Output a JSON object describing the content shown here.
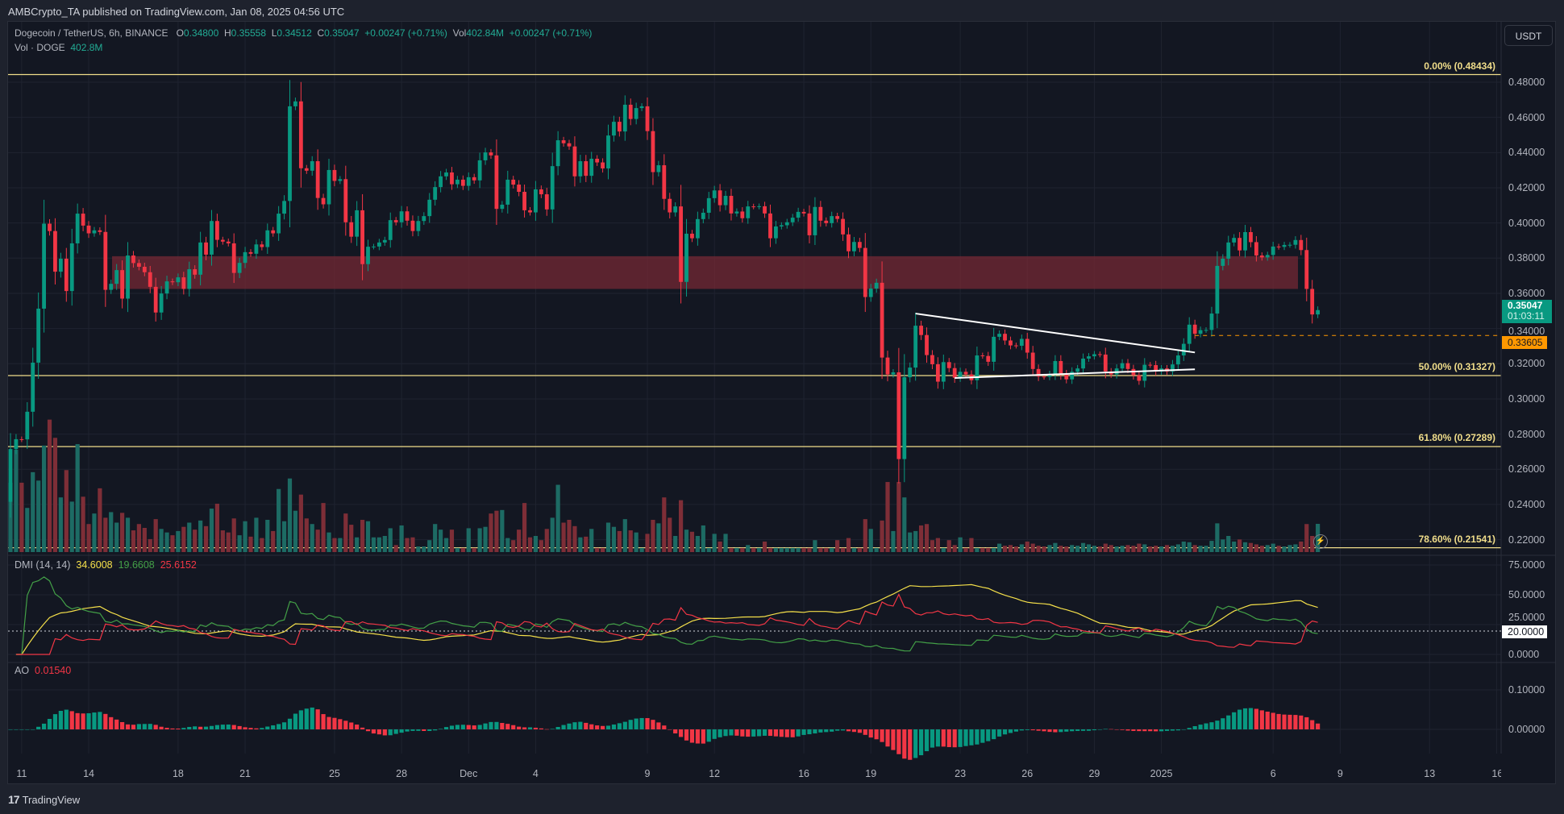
{
  "header": {
    "published": "AMBCrypto_TA published on TradingView.com, Jan 08, 2025 04:56 UTC"
  },
  "legend": {
    "symbol": "Dogecoin / TetherUS, 6h, BINANCE",
    "o_label": "O",
    "o": "0.34800",
    "h_label": "H",
    "h": "0.35558",
    "l_label": "L",
    "l": "0.34512",
    "c_label": "C",
    "c": "0.35047",
    "change": "+0.00247 (+0.71%)",
    "vol_label": "Vol",
    "vol": "402.84M",
    "vol_change": "+0.00247 (+0.71%)",
    "vol_series_label": "Vol · DOGE",
    "vol_series_value": "402.8M"
  },
  "currency_button": "USDT",
  "last_price": {
    "value": "0.35047",
    "countdown": "01:03:11"
  },
  "level_price": {
    "value": "0.33605",
    "price": 0.33605,
    "color": "#ff9800"
  },
  "colors": {
    "up": "#089981",
    "down": "#f23645",
    "fib": "#f0dd8a",
    "zone": "#7a2a35",
    "adx": "#f5e04a",
    "plus_di": "#43a047",
    "minus_di": "#f23645"
  },
  "price_axis": {
    "ticks": [
      "0.48000",
      "0.46000",
      "0.44000",
      "0.42000",
      "0.40000",
      "0.38000",
      "0.36000",
      "0.34000",
      "0.32000",
      "0.30000",
      "0.28000",
      "0.26000",
      "0.24000",
      "0.22000"
    ]
  },
  "fib_levels": [
    {
      "label": "0.00% (0.48434)",
      "price": 0.48434
    },
    {
      "label": "50.00% (0.31327)",
      "price": 0.31327
    },
    {
      "label": "61.80% (0.27289)",
      "price": 0.27289
    },
    {
      "label": "78.60% (0.21541)",
      "price": 0.21541
    }
  ],
  "resistance_zone": {
    "from": 0.3625,
    "to": 0.3811
  },
  "triangle": {
    "upper": [
      {
        "candle": 162,
        "price": 0.3485
      },
      {
        "candle": 212,
        "price": 0.3264
      }
    ],
    "lower": [
      {
        "candle": 169,
        "price": 0.3119
      },
      {
        "candle": 212,
        "price": 0.3168
      }
    ]
  },
  "dmi": {
    "label": "DMI (14, 14)",
    "adx": "34.6008",
    "plus_di": "19.6608",
    "minus_di": "25.6152",
    "ticks": [
      "75.0000",
      "50.0000",
      "25.0000",
      "0.0000"
    ],
    "level": "20.0000"
  },
  "ao": {
    "label": "AO",
    "value": "0.01540",
    "ticks": [
      "0.10000",
      "0.00000"
    ]
  },
  "time_axis": [
    {
      "label": "11",
      "date": "2024-11-11"
    },
    {
      "label": "14",
      "date": "2024-11-14"
    },
    {
      "label": "18",
      "date": "2024-11-18"
    },
    {
      "label": "21",
      "date": "2024-11-21"
    },
    {
      "label": "25",
      "date": "2024-11-25"
    },
    {
      "label": "28",
      "date": "2024-11-28"
    },
    {
      "label": "Dec",
      "date": "2024-12-01"
    },
    {
      "label": "4",
      "date": "2024-12-04"
    },
    {
      "label": "9",
      "date": "2024-12-09"
    },
    {
      "label": "12",
      "date": "2024-12-12"
    },
    {
      "label": "16",
      "date": "2024-12-16"
    },
    {
      "label": "19",
      "date": "2024-12-19"
    },
    {
      "label": "23",
      "date": "2024-12-23"
    },
    {
      "label": "26",
      "date": "2024-12-26"
    },
    {
      "label": "29",
      "date": "2024-12-29"
    },
    {
      "label": "2025",
      "date": "2025-01-01"
    },
    {
      "label": "6",
      "date": "2025-01-06"
    },
    {
      "label": "9",
      "date": "2025-01-09"
    },
    {
      "label": "13",
      "date": "2025-01-13"
    },
    {
      "label": "16",
      "date": "2025-01-16"
    }
  ],
  "footer": {
    "brand": "TradingView"
  },
  "chart_data": {
    "type": "candlestick",
    "interval": "6h",
    "start": "2024-11-10T12:00:00Z",
    "first_open": 0.2415,
    "y_scale": "linear",
    "ylim": [
      0.205,
      0.495
    ],
    "grid": true,
    "close": [
      0.2715,
      0.2771,
      0.277,
      0.2927,
      0.3206,
      0.3513,
      0.3996,
      0.3954,
      0.3723,
      0.3797,
      0.3613,
      0.3884,
      0.4053,
      0.3985,
      0.3941,
      0.3958,
      0.3949,
      0.362,
      0.3654,
      0.3732,
      0.357,
      0.3815,
      0.3772,
      0.3751,
      0.372,
      0.3637,
      0.3491,
      0.3599,
      0.3668,
      0.3663,
      0.3691,
      0.3625,
      0.3737,
      0.3706,
      0.3889,
      0.382,
      0.4011,
      0.3904,
      0.3894,
      0.3884,
      0.3716,
      0.3773,
      0.3834,
      0.3825,
      0.3878,
      0.3863,
      0.3958,
      0.3941,
      0.4053,
      0.4125,
      0.4663,
      0.4691,
      0.4311,
      0.4297,
      0.4351,
      0.4142,
      0.4106,
      0.4301,
      0.4239,
      0.4249,
      0.4004,
      0.3922,
      0.4072,
      0.3766,
      0.3865,
      0.3866,
      0.3889,
      0.3903,
      0.4016,
      0.4004,
      0.4066,
      0.4013,
      0.3954,
      0.4011,
      0.4039,
      0.4132,
      0.4204,
      0.4265,
      0.4287,
      0.422,
      0.4246,
      0.4211,
      0.426,
      0.4242,
      0.4356,
      0.4401,
      0.4384,
      0.408,
      0.4104,
      0.4246,
      0.4218,
      0.4177,
      0.4072,
      0.406,
      0.4191,
      0.4163,
      0.4077,
      0.4323,
      0.447,
      0.4453,
      0.4435,
      0.4265,
      0.4351,
      0.4268,
      0.4365,
      0.4344,
      0.431,
      0.4497,
      0.4575,
      0.452,
      0.4672,
      0.4591,
      0.4653,
      0.4663,
      0.4522,
      0.4289,
      0.4328,
      0.4137,
      0.406,
      0.4094,
      0.3665,
      0.3939,
      0.3913,
      0.4022,
      0.4058,
      0.4141,
      0.4185,
      0.4101,
      0.4154,
      0.4054,
      0.4065,
      0.4027,
      0.4094,
      0.4093,
      0.4095,
      0.4054,
      0.3913,
      0.398,
      0.3987,
      0.4004,
      0.403,
      0.4063,
      0.4054,
      0.393,
      0.4091,
      0.4013,
      0.3999,
      0.4039,
      0.4023,
      0.3935,
      0.3839,
      0.3892,
      0.3858,
      0.3579,
      0.3627,
      0.366,
      0.3235,
      0.3139,
      0.3151,
      0.2658,
      0.3123,
      0.3178,
      0.3416,
      0.3363,
      0.3249,
      0.3197,
      0.3098,
      0.3209,
      0.3175,
      0.312,
      0.3154,
      0.3139,
      0.3106,
      0.3247,
      0.3244,
      0.3211,
      0.3353,
      0.337,
      0.3332,
      0.3304,
      0.3302,
      0.3341,
      0.3263,
      0.317,
      0.3127,
      0.3125,
      0.3141,
      0.3215,
      0.3142,
      0.3111,
      0.3154,
      0.3173,
      0.3229,
      0.3242,
      0.3254,
      0.3252,
      0.3156,
      0.3139,
      0.3173,
      0.3203,
      0.317,
      0.3134,
      0.3103,
      0.3194,
      0.3192,
      0.3156,
      0.3173,
      0.3156,
      0.3196,
      0.3247,
      0.3313,
      0.3422,
      0.337,
      0.3391,
      0.3392,
      0.3485,
      0.3756,
      0.3797,
      0.3889,
      0.3915,
      0.3844,
      0.3948,
      0.3891,
      0.3815,
      0.3804,
      0.3818,
      0.3866,
      0.3864,
      0.3875,
      0.3876,
      0.3903,
      0.3846,
      0.3625,
      0.348,
      0.35047
    ],
    "volume_m": [
      990,
      1460,
      990,
      630,
      1140,
      1020,
      1520,
      1890,
      1630,
      780,
      1170,
      720,
      1540,
      790,
      400,
      550,
      910,
      490,
      570,
      420,
      560,
      490,
      310,
      400,
      345,
      185,
      470,
      330,
      280,
      240,
      300,
      360,
      420,
      320,
      450,
      370,
      620,
      690,
      310,
      280,
      480,
      240,
      440,
      220,
      490,
      200,
      460,
      300,
      900,
      440,
      1050,
      590,
      820,
      480,
      400,
      320,
      700,
      280,
      200,
      200,
      550,
      390,
      210,
      460,
      440,
      210,
      210,
      230,
      340,
      100,
      380,
      200,
      210,
      80,
      80,
      170,
      400,
      320,
      200,
      320,
      60,
      60,
      340,
      60,
      340,
      360,
      550,
      590,
      600,
      200,
      170,
      320,
      700,
      210,
      230,
      170,
      330,
      490,
      960,
      420,
      460,
      370,
      210,
      220,
      330,
      60,
      60,
      420,
      360,
      300,
      470,
      310,
      280,
      60,
      260,
      460,
      410,
      780,
      490,
      230,
      740,
      320,
      290,
      230,
      380,
      60,
      260,
      150,
      260,
      60,
      60,
      60,
      100,
      60,
      60,
      150,
      60,
      60,
      60,
      60,
      60,
      60,
      60,
      60,
      170,
      60,
      60,
      60,
      170,
      60,
      200,
      60,
      60,
      470,
      330,
      60,
      450,
      1000,
      300,
      1000,
      780,
      280,
      300,
      380,
      400,
      170,
      200,
      60,
      170,
      100,
      210,
      60,
      200,
      60,
      60,
      60,
      60,
      120,
      90,
      100,
      80,
      110,
      150,
      120,
      90,
      80,
      100,
      130,
      90,
      80,
      100,
      90,
      130,
      110,
      90,
      80,
      120,
      100,
      80,
      90,
      100,
      90,
      120,
      110,
      80,
      90,
      80,
      100,
      90,
      110,
      150,
      140,
      100,
      90,
      90,
      160,
      410,
      180,
      230,
      150,
      180,
      140,
      130,
      110,
      90,
      100,
      120,
      90,
      80,
      100,
      110,
      150,
      400,
      230,
      402.8
    ]
  }
}
